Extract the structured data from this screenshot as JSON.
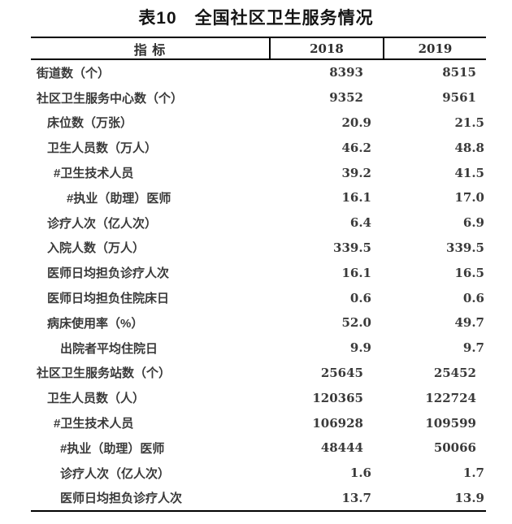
{
  "title": "表10　全国社区卫生服务情况",
  "colors": {
    "background": "#ffffff",
    "border": "#000000",
    "title_text": "#141414",
    "body_text": "#3a3a3a"
  },
  "table": {
    "header": {
      "indicator": "指 标",
      "year1": "2018",
      "year2": "2019"
    },
    "rows": [
      {
        "label": "街道数（个）",
        "indent": 0,
        "v2018": "8393",
        "v2019": "8515"
      },
      {
        "label": "社区卫生服务中心数（个）",
        "indent": 0,
        "v2018": "9352",
        "v2019": "9561"
      },
      {
        "label": "床位数（万张）",
        "indent": 1,
        "v2018": "20.9",
        "v2019": "21.5"
      },
      {
        "label": "卫生人员数（万人）",
        "indent": 1,
        "v2018": "46.2",
        "v2019": "48.8"
      },
      {
        "label": "#卫生技术人员",
        "indent": 2,
        "v2018": "39.2",
        "v2019": "41.5"
      },
      {
        "label": "#执业（助理）医师",
        "indent": 4,
        "v2018": "16.1",
        "v2019": "17.0"
      },
      {
        "label": "诊疗人次（亿人次）",
        "indent": 1,
        "v2018": "6.4",
        "v2019": "6.9"
      },
      {
        "label": "入院人数（万人）",
        "indent": 1,
        "v2018": "339.5",
        "v2019": "339.5"
      },
      {
        "label": "医师日均担负诊疗人次",
        "indent": 1,
        "v2018": "16.1",
        "v2019": "16.5"
      },
      {
        "label": "医师日均担负住院床日",
        "indent": 1,
        "v2018": "0.6",
        "v2019": "0.6"
      },
      {
        "label": "病床使用率（%）",
        "indent": 1,
        "v2018": "52.0",
        "v2019": "49.7"
      },
      {
        "label": "出院者平均住院日",
        "indent": 3,
        "v2018": "9.9",
        "v2019": "9.7"
      },
      {
        "label": "社区卫生服务站数（个）",
        "indent": 0,
        "v2018": "25645",
        "v2019": "25452"
      },
      {
        "label": "卫生人员数（人）",
        "indent": 1,
        "v2018": "120365",
        "v2019": "122724"
      },
      {
        "label": "#卫生技术人员",
        "indent": 2,
        "v2018": "106928",
        "v2019": "109599"
      },
      {
        "label": "#执业（助理）医师",
        "indent": 3,
        "v2018": "48444",
        "v2019": "50066"
      },
      {
        "label": "诊疗人次（亿人次）",
        "indent": 3,
        "v2018": "1.6",
        "v2019": "1.7"
      },
      {
        "label": "医师日均担负诊疗人次",
        "indent": 3,
        "v2018": "13.7",
        "v2019": "13.9"
      }
    ]
  }
}
